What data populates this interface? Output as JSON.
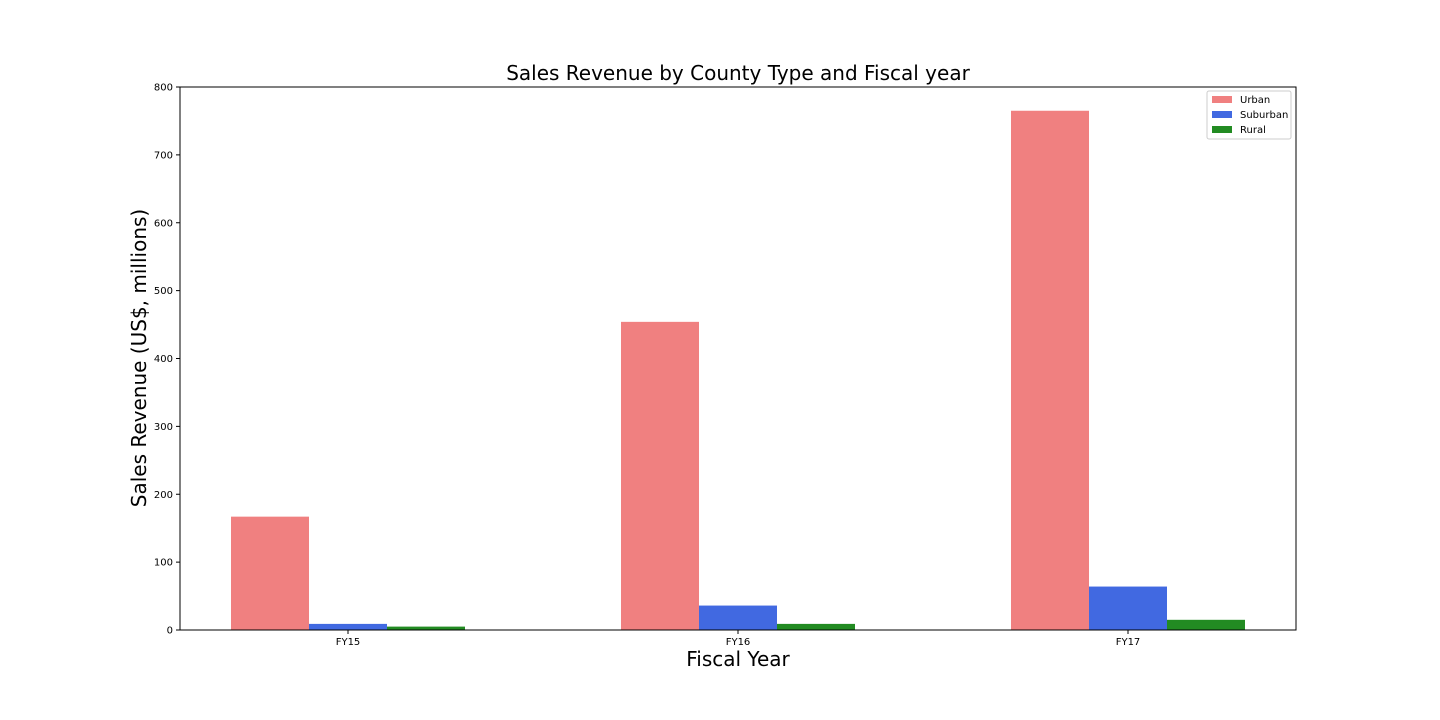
{
  "chart_data": {
    "type": "bar",
    "title": "Sales Revenue by County Type and Fiscal year",
    "xlabel": "Fiscal Year",
    "ylabel": "Sales Revenue (US$, millions)",
    "categories": [
      "FY15",
      "FY16",
      "FY17"
    ],
    "series": [
      {
        "name": "Urban",
        "color": "#f08080",
        "values": [
          167,
          454,
          765
        ]
      },
      {
        "name": "Suburban",
        "color": "#4169e1",
        "values": [
          9,
          36,
          64
        ]
      },
      {
        "name": "Rural",
        "color": "#228b22",
        "values": [
          5,
          9,
          15
        ]
      }
    ],
    "ylim": [
      0,
      800
    ],
    "yticks": [
      0,
      100,
      200,
      300,
      400,
      500,
      600,
      700,
      800
    ],
    "grid": false,
    "legend_position": "top-right"
  }
}
